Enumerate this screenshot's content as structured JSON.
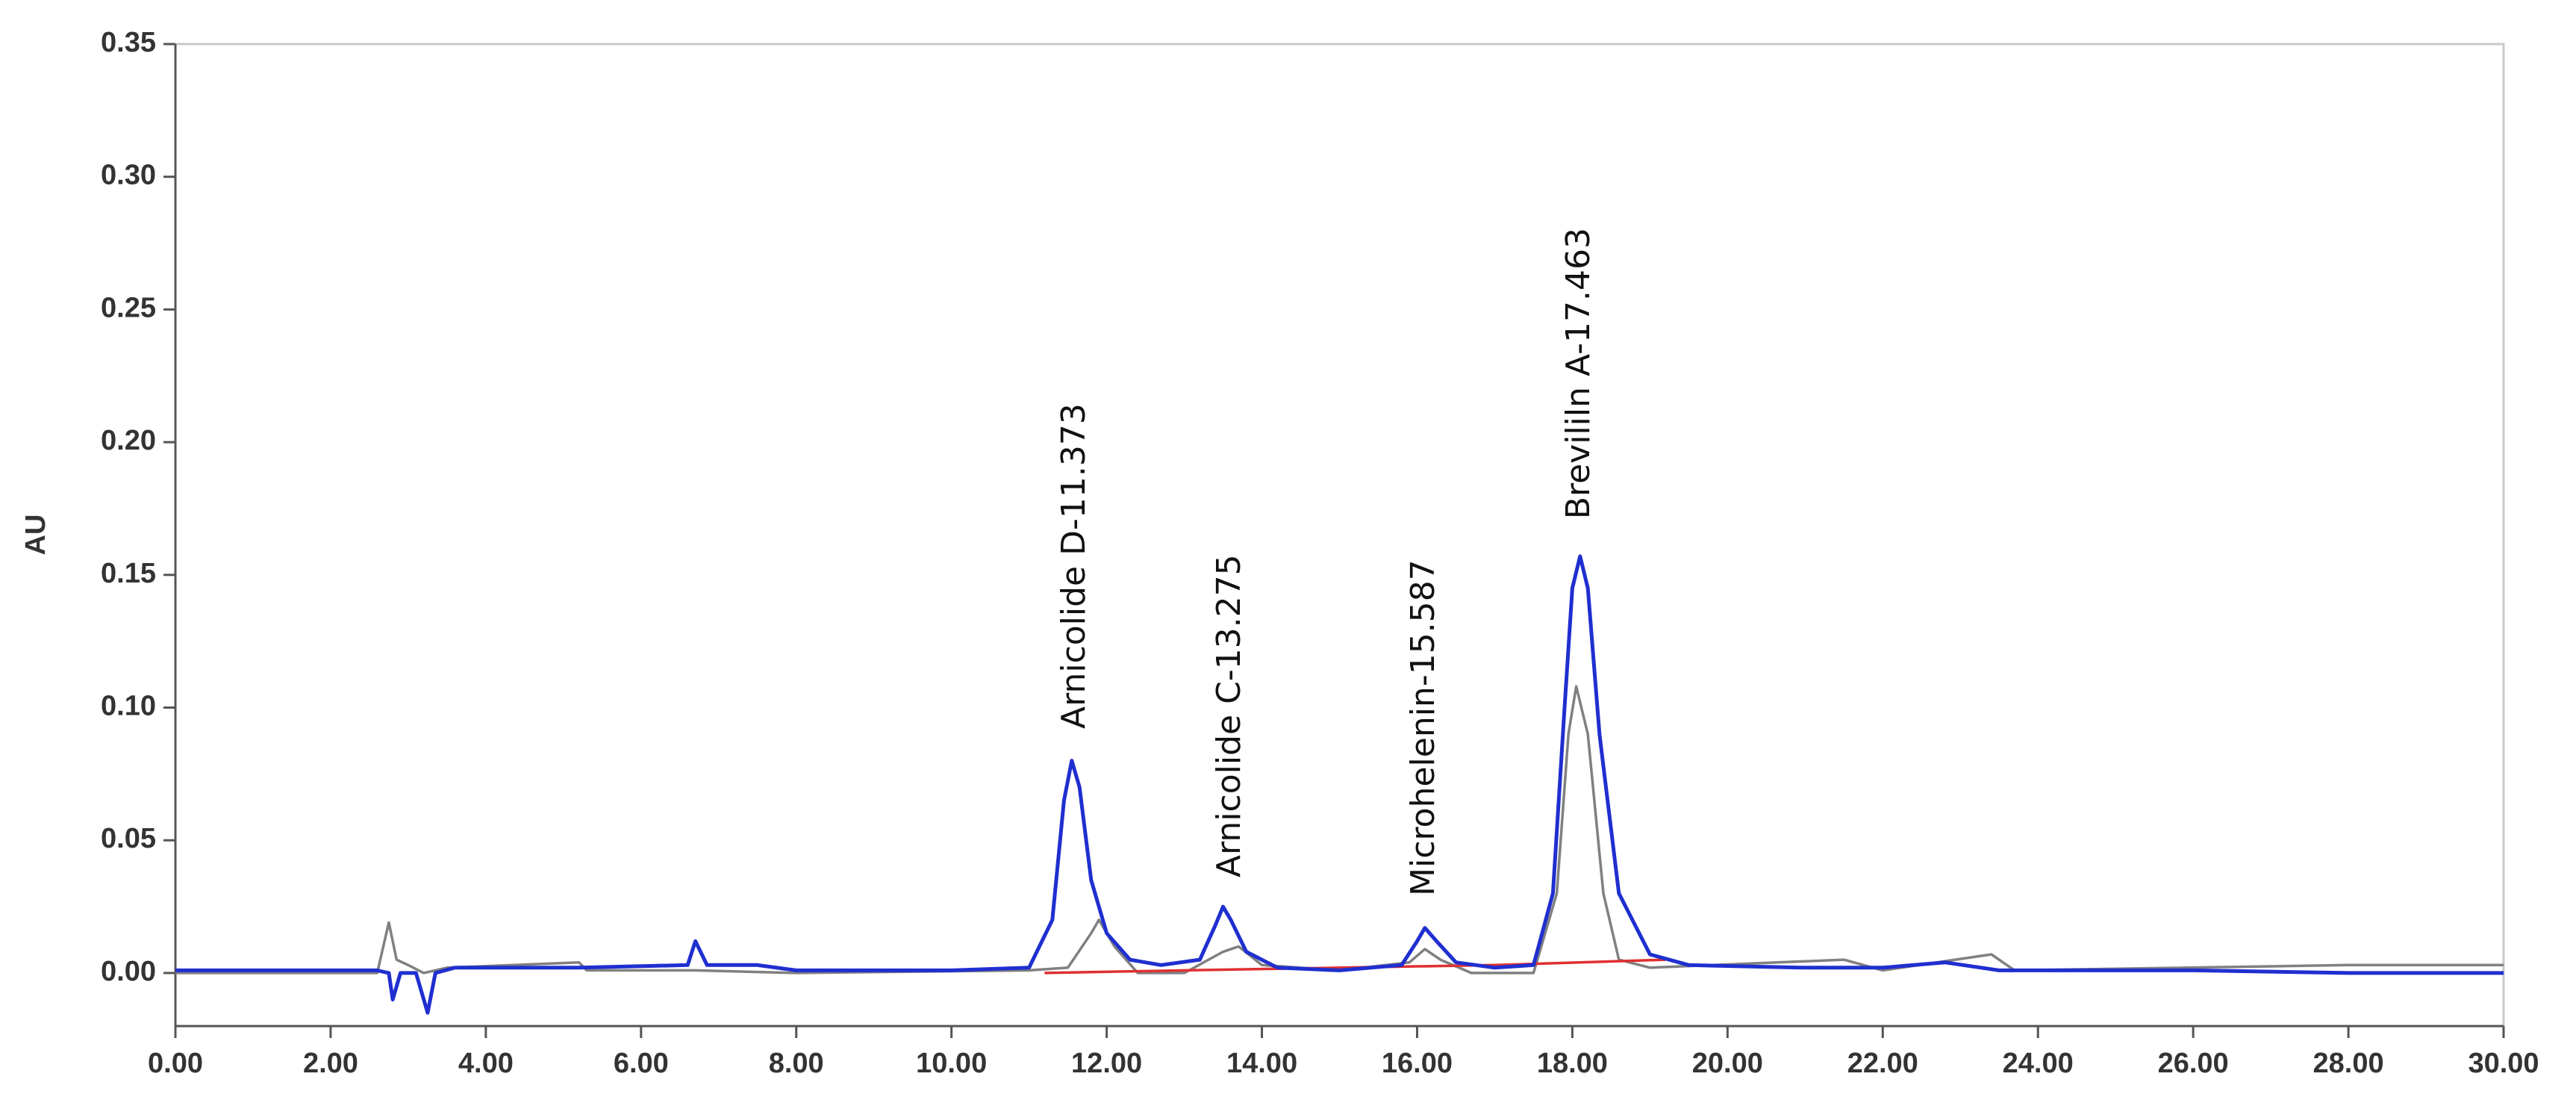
{
  "chart_data": {
    "type": "line",
    "ylabel": "AU",
    "xlim": [
      0,
      30
    ],
    "ylim": [
      -0.02,
      0.35
    ],
    "xticks": [
      {
        "value": 0,
        "label": "0.00"
      },
      {
        "value": 2,
        "label": "2.00"
      },
      {
        "value": 4,
        "label": "4.00"
      },
      {
        "value": 6,
        "label": "6.00"
      },
      {
        "value": 8,
        "label": "8.00"
      },
      {
        "value": 10,
        "label": "10.00"
      },
      {
        "value": 12,
        "label": "12.00"
      },
      {
        "value": 14,
        "label": "14.00"
      },
      {
        "value": 16,
        "label": "16.00"
      },
      {
        "value": 18,
        "label": "18.00"
      },
      {
        "value": 20,
        "label": "20.00"
      },
      {
        "value": 22,
        "label": "22.00"
      },
      {
        "value": 24,
        "label": "24.00"
      },
      {
        "value": 26,
        "label": "26.00"
      },
      {
        "value": 28,
        "label": "28.00"
      },
      {
        "value": 30,
        "label": "30.00"
      }
    ],
    "yticks": [
      {
        "value": 0,
        "label": "0.00"
      },
      0.05,
      {
        "value": 0.1,
        "label": "0.10"
      },
      0.15,
      {
        "value": 0.2,
        "label": "0.20"
      },
      0.25,
      {
        "value": 0.3,
        "label": "0.30"
      },
      0.35
    ],
    "series": [
      {
        "color": "#808080",
        "x": [
          0,
          2.6,
          2.75,
          2.85,
          3.0,
          3.2,
          3.5,
          5.2,
          5.3,
          6.7,
          8,
          11,
          11.5,
          11.8,
          11.9,
          12.1,
          12.4,
          13,
          13.5,
          13.7,
          14,
          15,
          15.9,
          16.1,
          16.3,
          16.7,
          17.5,
          17.8,
          17.95,
          18.05,
          18.2,
          18.4,
          18.6,
          19,
          21.5,
          22,
          23.4,
          23.7,
          28,
          30
        ],
        "values": [
          0,
          0,
          0.019,
          0.005,
          0.003,
          0,
          0.002,
          0.004,
          0.001,
          0.001,
          0,
          0.001,
          0.002,
          0.015,
          0.02,
          0.01,
          0,
          0,
          0.008,
          0.01,
          0.003,
          0.001,
          0.004,
          0.009,
          0.005,
          0,
          0,
          0.03,
          0.09,
          0.108,
          0.09,
          0.03,
          0.005,
          0.002,
          0.005,
          0.001,
          0.007,
          0.001,
          0.003,
          0.003
        ]
      },
      {
        "color": "#e03030",
        "x": [
          11.2,
          13,
          15,
          17,
          19.2
        ],
        "values": [
          0,
          0.001,
          0.002,
          0.003,
          0.005
        ]
      },
      {
        "color": "#1f2fd0",
        "x": [
          0,
          2.6,
          2.75,
          2.8,
          2.9,
          3.1,
          3.25,
          3.35,
          3.6,
          4.0,
          5.2,
          6.6,
          6.7,
          6.85,
          7.5,
          8,
          10,
          11,
          11.3,
          11.45,
          11.55,
          11.65,
          11.8,
          12,
          12.3,
          12.7,
          13.2,
          13.4,
          13.5,
          13.6,
          13.8,
          14.2,
          15,
          15.8,
          16,
          16.1,
          16.25,
          16.5,
          17,
          17.5,
          17.75,
          17.9,
          18.0,
          18.1,
          18.2,
          18.35,
          18.6,
          19.0,
          19.5,
          21,
          22,
          22.8,
          23.5,
          26,
          28,
          30
        ],
        "values": [
          0.001,
          0.001,
          0,
          -0.01,
          0,
          0,
          -0.015,
          0,
          0.002,
          0.002,
          0.002,
          0.003,
          0.012,
          0.003,
          0.003,
          0.001,
          0.001,
          0.002,
          0.02,
          0.065,
          0.08,
          0.07,
          0.035,
          0.015,
          0.005,
          0.003,
          0.005,
          0.018,
          0.025,
          0.02,
          0.008,
          0.002,
          0.001,
          0.003,
          0.012,
          0.017,
          0.012,
          0.004,
          0.002,
          0.003,
          0.03,
          0.1,
          0.145,
          0.157,
          0.145,
          0.09,
          0.03,
          0.007,
          0.003,
          0.002,
          0.002,
          0.004,
          0.001,
          0.001,
          0,
          0
        ]
      }
    ],
    "annotations": [
      {
        "text": "Arnicolide  D-11.373",
        "x": 11.6,
        "y": 0.092
      },
      {
        "text": "Arnicolide  C-13.275",
        "x": 13.6,
        "y": 0.036
      },
      {
        "text": "Microhelenin-15.587",
        "x": 16.1,
        "y": 0.029
      },
      {
        "text": "Brevililn  A-17.463",
        "x": 18.1,
        "y": 0.171
      }
    ]
  }
}
